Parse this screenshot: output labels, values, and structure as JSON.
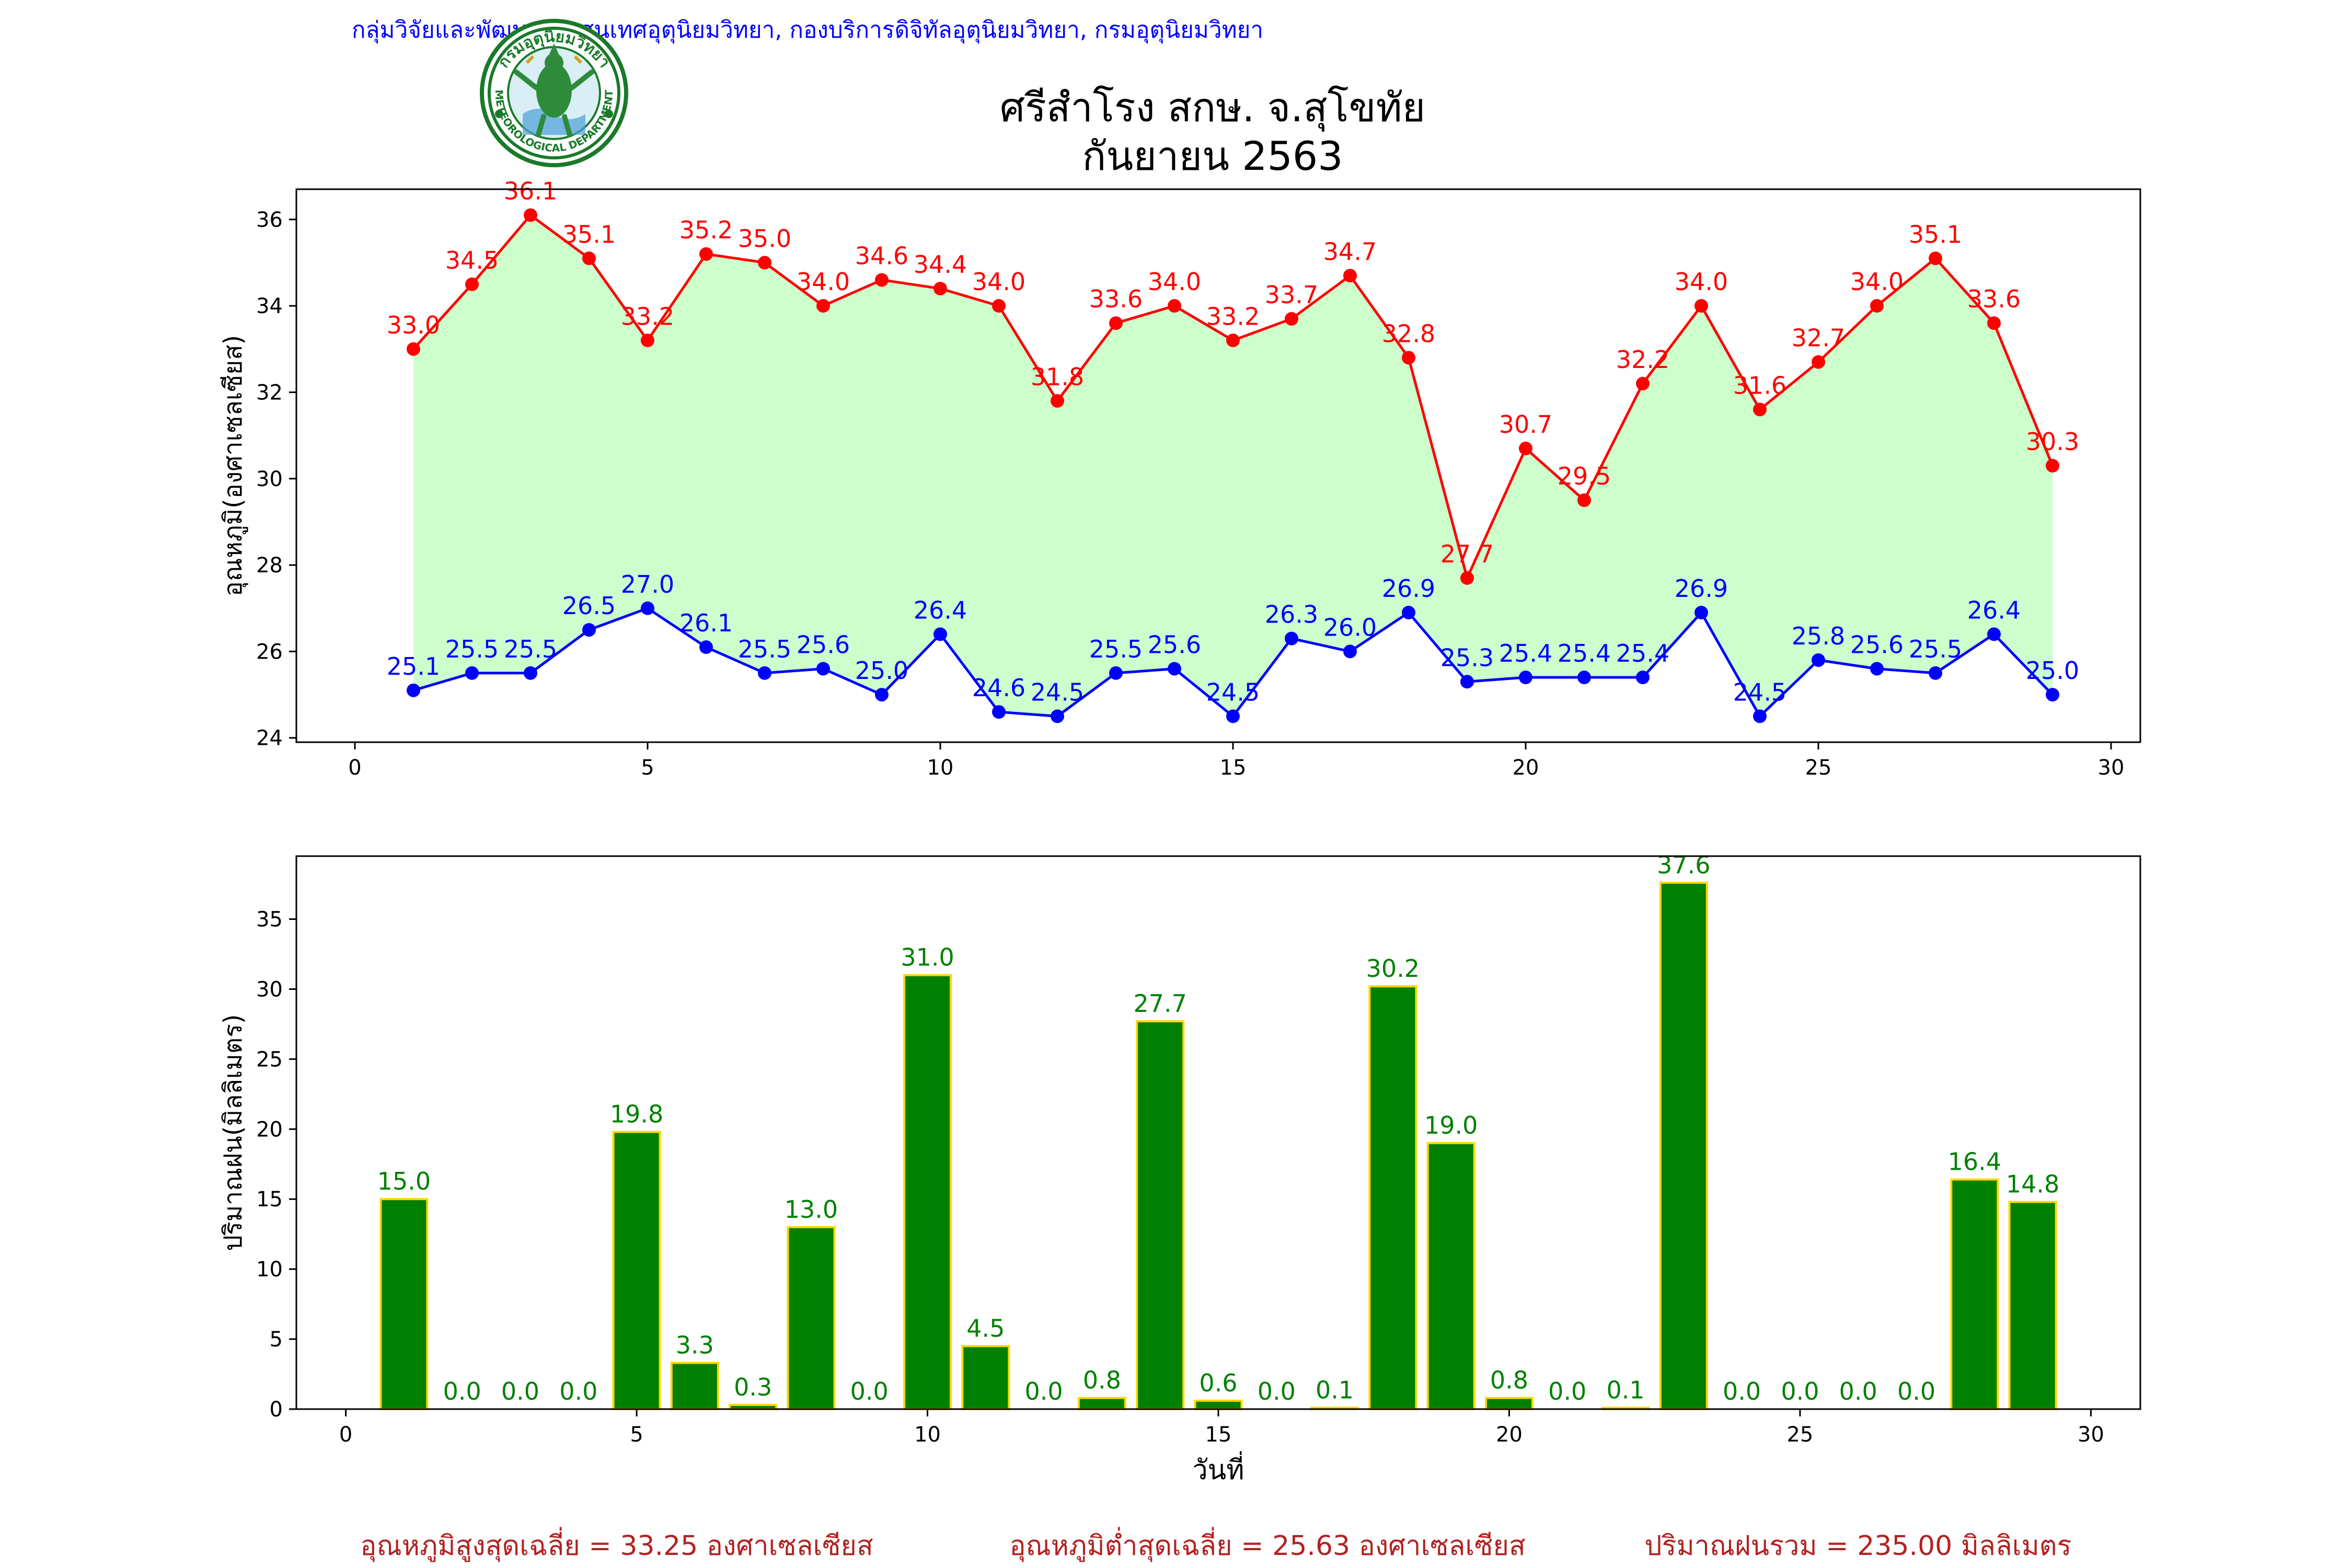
{
  "header": {
    "org_line": "กลุ่มวิจัยและพัฒนาสารสนเทศอุตุนิยมวิทยา, กองบริการดิจิทัลอุตุนิยมวิทยา, กรมอุตุนิยมวิทยา",
    "logo_text_top": "กรมอุตุนิยมวิทยา",
    "logo_text_bottom": "METEOROLOGICAL DEPARTMENT"
  },
  "colors": {
    "org_line": "#0000ff",
    "tmax": "#ff0000",
    "tmin": "#0000ff",
    "fill": "#ccffcc",
    "bar": "#008000",
    "bar_edge": "#ffd700",
    "bar_label": "#008000",
    "summary": "#b22222",
    "logo_ring": "#1a7a2a"
  },
  "chart_data": [
    {
      "type": "line",
      "title": "ศรีสำโรง สกษ. จ.สุโขทัย",
      "subtitle": "กันยายน 2563",
      "xlabel": "",
      "ylabel": "อุณหภูมิ(องศาเซลเซียส)",
      "xlim": [
        -1,
        30.5
      ],
      "ylim": [
        23.9,
        36.7
      ],
      "xticks": [
        0,
        5,
        10,
        15,
        20,
        25,
        30
      ],
      "yticks": [
        24,
        26,
        28,
        30,
        32,
        34,
        36
      ],
      "grid": false,
      "fill_between": true,
      "x": [
        1,
        2,
        3,
        4,
        5,
        6,
        7,
        8,
        9,
        10,
        11,
        12,
        13,
        14,
        15,
        16,
        17,
        18,
        19,
        20,
        21,
        22,
        23,
        24,
        25,
        26,
        27,
        28,
        29
      ],
      "series": [
        {
          "values": [
            33.0,
            34.5,
            36.1,
            35.1,
            33.2,
            35.2,
            35.0,
            34.0,
            34.6,
            34.4,
            34.0,
            31.8,
            33.6,
            34.0,
            33.2,
            33.7,
            34.7,
            32.8,
            27.7,
            30.7,
            29.5,
            32.2,
            34.0,
            31.6,
            32.7,
            34.0,
            35.1,
            33.6,
            30.3
          ]
        },
        {
          "values": [
            25.1,
            25.5,
            25.5,
            26.5,
            27.0,
            26.1,
            25.5,
            25.6,
            25.0,
            26.4,
            24.6,
            24.5,
            25.5,
            25.6,
            24.5,
            26.3,
            26.0,
            26.9,
            25.3,
            25.4,
            25.4,
            25.4,
            26.9,
            24.5,
            25.8,
            25.6,
            25.5,
            26.4,
            25.0
          ]
        }
      ]
    },
    {
      "type": "bar",
      "xlabel": "วันที่",
      "ylabel": "ปริมาณฝน(มิลลิเมตร)",
      "xlim": [
        -0.85,
        30.85
      ],
      "ylim": [
        0,
        39.5
      ],
      "xticks": [
        0,
        5,
        10,
        15,
        20,
        25,
        30
      ],
      "yticks": [
        0,
        5,
        10,
        15,
        20,
        25,
        30,
        35
      ],
      "grid": false,
      "x": [
        1,
        2,
        3,
        4,
        5,
        6,
        7,
        8,
        9,
        10,
        11,
        12,
        13,
        14,
        15,
        16,
        17,
        18,
        19,
        20,
        21,
        22,
        23,
        24,
        25,
        26,
        27,
        28,
        29
      ],
      "values": [
        15.0,
        0.0,
        0.0,
        0.0,
        19.8,
        3.3,
        0.3,
        13.0,
        0.0,
        31.0,
        4.5,
        0.0,
        0.8,
        27.7,
        0.6,
        0.0,
        0.1,
        30.2,
        19.0,
        0.8,
        0.0,
        0.1,
        37.6,
        0.0,
        0.0,
        0.0,
        0.0,
        16.4,
        14.8
      ]
    }
  ],
  "summary": {
    "avg_max": "อุณหภูมิสูงสุดเฉลี่ย = 33.25 องศาเซลเซียส",
    "avg_min": "อุณหภูมิต่ำสุดเฉลี่ย = 25.63 องศาเซลเซียส",
    "total_rain": "ปริมาณฝนรวม = 235.00 มิลลิเมตร"
  }
}
